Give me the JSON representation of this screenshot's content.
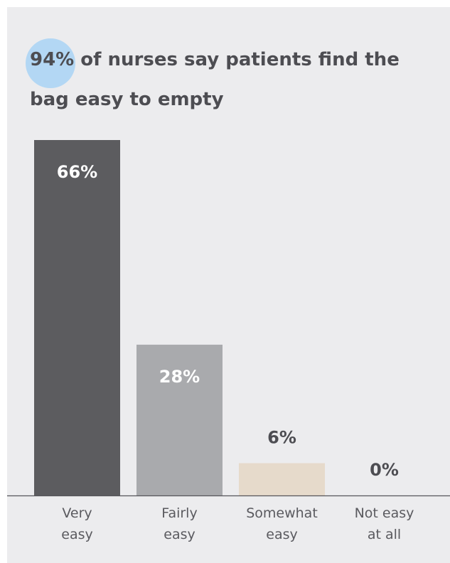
{
  "title": {
    "highlight": "94%",
    "rest": " of nurses say patients find the bag easy to empty"
  },
  "chart_data": {
    "type": "bar",
    "title": "94% of nurses say patients find the bag easy to empty",
    "categories": [
      "Very easy",
      "Fairly easy",
      "Somewhat easy",
      "Not easy at all"
    ],
    "category_lines": [
      [
        "Very",
        "easy"
      ],
      [
        "Fairly",
        "easy"
      ],
      [
        "Somewhat",
        "easy"
      ],
      [
        "Not easy",
        "at all"
      ]
    ],
    "values": [
      66,
      28,
      6,
      0
    ],
    "value_labels": [
      "66%",
      "28%",
      "6%",
      "0%"
    ],
    "bar_colors": [
      "#5c5c5f",
      "#a9aaad",
      "#e6dacb",
      "#e6dacb"
    ],
    "label_inside": [
      true,
      true,
      false,
      false
    ],
    "ylim": [
      0,
      66
    ],
    "grid": false,
    "highlight_color": "#a9d4f5"
  }
}
